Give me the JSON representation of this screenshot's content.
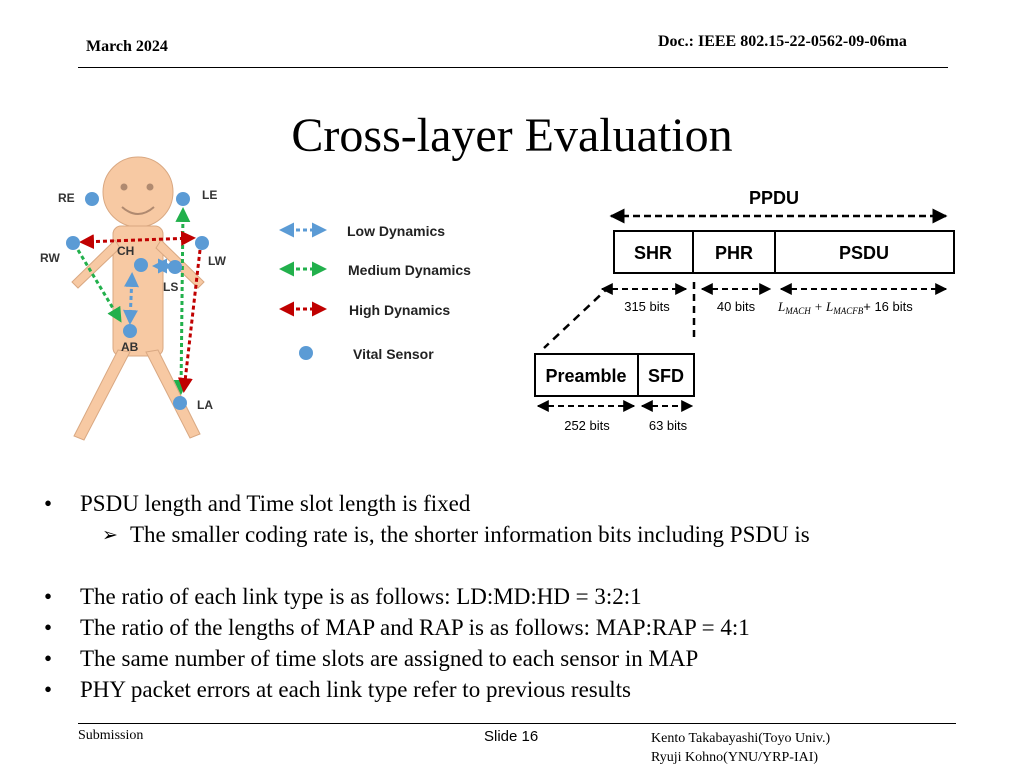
{
  "header": {
    "date": "March 2024",
    "doc": "Doc.: IEEE 802.15-22-0562-09-06ma"
  },
  "title": "Cross-layer Evaluation",
  "body_diagram": {
    "labels": {
      "re": "RE",
      "le": "LE",
      "rw": "RW",
      "lw": "LW",
      "ch": "CH",
      "ls": "LS",
      "ab": "AB",
      "la": "LA"
    },
    "colors": {
      "skin": "#f7c9a3",
      "sensor": "#5b9bd5",
      "low": "#5b9bd5",
      "medium": "#22b04c",
      "high": "#c00000"
    }
  },
  "legend": {
    "low": "Low Dynamics",
    "medium": "Medium Dynamics",
    "high": "High Dynamics",
    "sensor": "Vital Sensor"
  },
  "frame": {
    "ppdu": "PPDU",
    "shr": "SHR",
    "phr": "PHR",
    "psdu": "PSDU",
    "shr_bits": "315 bits",
    "phr_bits": "40 bits",
    "psdu_bits_suffix": "+ 16 bits",
    "preamble": "Preamble",
    "sfd": "SFD",
    "preamble_bits": "252 bits",
    "sfd_bits": "63 bits"
  },
  "bullets": {
    "b1": "PSDU length and Time slot length is fixed",
    "b1_sub": "The smaller coding rate is, the shorter information bits including PSDU is",
    "b2": "The ratio of each link type is as follows: LD:MD:HD = 3:2:1",
    "b3": "The ratio of the lengths of MAP and RAP is as follows: MAP:RAP = 4:1",
    "b4": "The same number of time slots are assigned to each sensor in MAP",
    "b5": "PHY packet errors at each link type refer to previous results"
  },
  "footer": {
    "submission": "Submission",
    "slide": "Slide 16",
    "author1": "Kento Takabayashi(Toyo Univ.)",
    "author2": "Ryuji Kohno(YNU/YRP-IAI)"
  }
}
